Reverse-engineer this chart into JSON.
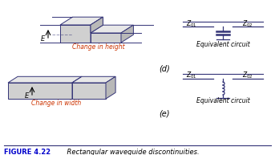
{
  "bg": "#ffffff",
  "lc": "#333377",
  "tc": "#000000",
  "rc": "#cc3300",
  "bc": "#0000cc",
  "fig_label": "FIGURE 4.22",
  "fig_caption": "    Rectangular waveguide discontinuities.",
  "caption_d": "Change in height",
  "caption_e": "Change in width",
  "label_d": "(d)",
  "label_e": "(e)",
  "equiv": "Equivalent circuit",
  "gray_top": "#e8e8e8",
  "gray_side": "#b8b8b8",
  "gray_front": "#d0d0d0",
  "gray_dark": "#a0a0a0"
}
